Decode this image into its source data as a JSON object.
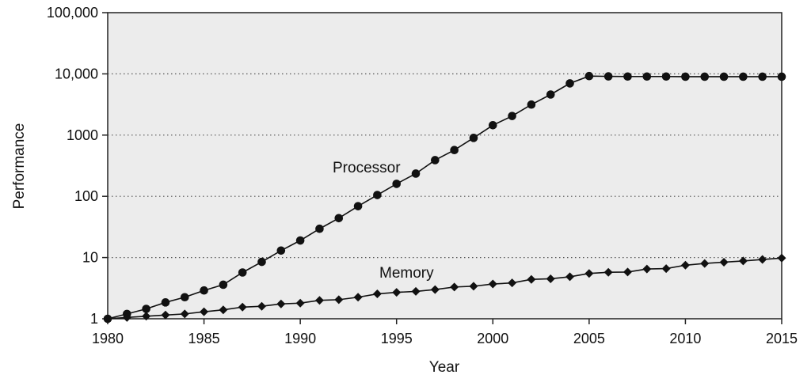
{
  "chart_data": {
    "type": "line",
    "xlabel": "Year",
    "ylabel": "Performance",
    "y_scale": "log",
    "xlim": [
      1980,
      2015
    ],
    "ylim": [
      1,
      100000
    ],
    "x_ticks": [
      1980,
      1985,
      1990,
      1995,
      2000,
      2005,
      2010,
      2015
    ],
    "x_tick_labels": [
      "1980",
      "1985",
      "1990",
      "1995",
      "2000",
      "2005",
      "2010",
      "2015"
    ],
    "y_ticks": [
      1,
      10,
      100,
      1000,
      10000,
      100000
    ],
    "y_tick_labels": [
      "1",
      "10",
      "100",
      "1000",
      "10,000",
      "100,000"
    ],
    "grid": "horizontal dotted",
    "background_color": "#ececec",
    "line_color": "#111111",
    "x": [
      1980,
      1981,
      1982,
      1983,
      1984,
      1985,
      1986,
      1987,
      1988,
      1989,
      1990,
      1991,
      1992,
      1993,
      1994,
      1995,
      1996,
      1997,
      1998,
      1999,
      2000,
      2001,
      2002,
      2003,
      2004,
      2005,
      2006,
      2007,
      2008,
      2009,
      2010,
      2011,
      2012,
      2013,
      2014,
      2015
    ],
    "series": [
      {
        "name": "Processor",
        "marker": "circle",
        "values": [
          1,
          1.2,
          1.45,
          1.85,
          2.25,
          2.9,
          3.6,
          5.7,
          8.5,
          13,
          19,
          29.5,
          44,
          69,
          105,
          160,
          235,
          390,
          570,
          900,
          1450,
          2050,
          3150,
          4600,
          7000,
          9200,
          9100,
          9050,
          9050,
          9050,
          9000,
          9000,
          9000,
          9000,
          9000,
          9000
        ]
      },
      {
        "name": "Memory",
        "marker": "diamond",
        "values": [
          1,
          1.05,
          1.1,
          1.15,
          1.2,
          1.3,
          1.4,
          1.55,
          1.6,
          1.75,
          1.8,
          2.0,
          2.05,
          2.25,
          2.55,
          2.7,
          2.8,
          3.0,
          3.3,
          3.4,
          3.7,
          3.85,
          4.4,
          4.5,
          4.85,
          5.5,
          5.75,
          5.8,
          6.5,
          6.6,
          7.5,
          8.0,
          8.4,
          8.8,
          9.3,
          9.8
        ]
      }
    ]
  }
}
